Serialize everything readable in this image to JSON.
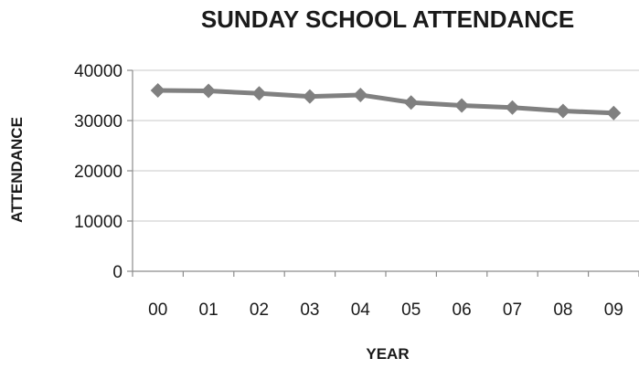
{
  "chart_data": {
    "type": "line",
    "title": "SUNDAY SCHOOL ATTENDANCE",
    "xlabel": "YEAR",
    "ylabel": "ATTENDANCE",
    "categories": [
      "00",
      "01",
      "02",
      "03",
      "04",
      "05",
      "06",
      "07",
      "08",
      "09"
    ],
    "series": [
      {
        "values": [
          36000,
          35900,
          35400,
          34800,
          35100,
          33600,
          33000,
          32600,
          31900,
          31500
        ]
      }
    ],
    "ylim": [
      0,
      40000
    ],
    "yticks": [
      "0",
      "10000",
      "20000",
      "30000",
      "40000"
    ],
    "grid": true,
    "legend": "none",
    "colors": {
      "series": "#808080",
      "grid": "#c8c8c8",
      "axis": "#8c8c8c"
    },
    "marker": "diamond"
  }
}
